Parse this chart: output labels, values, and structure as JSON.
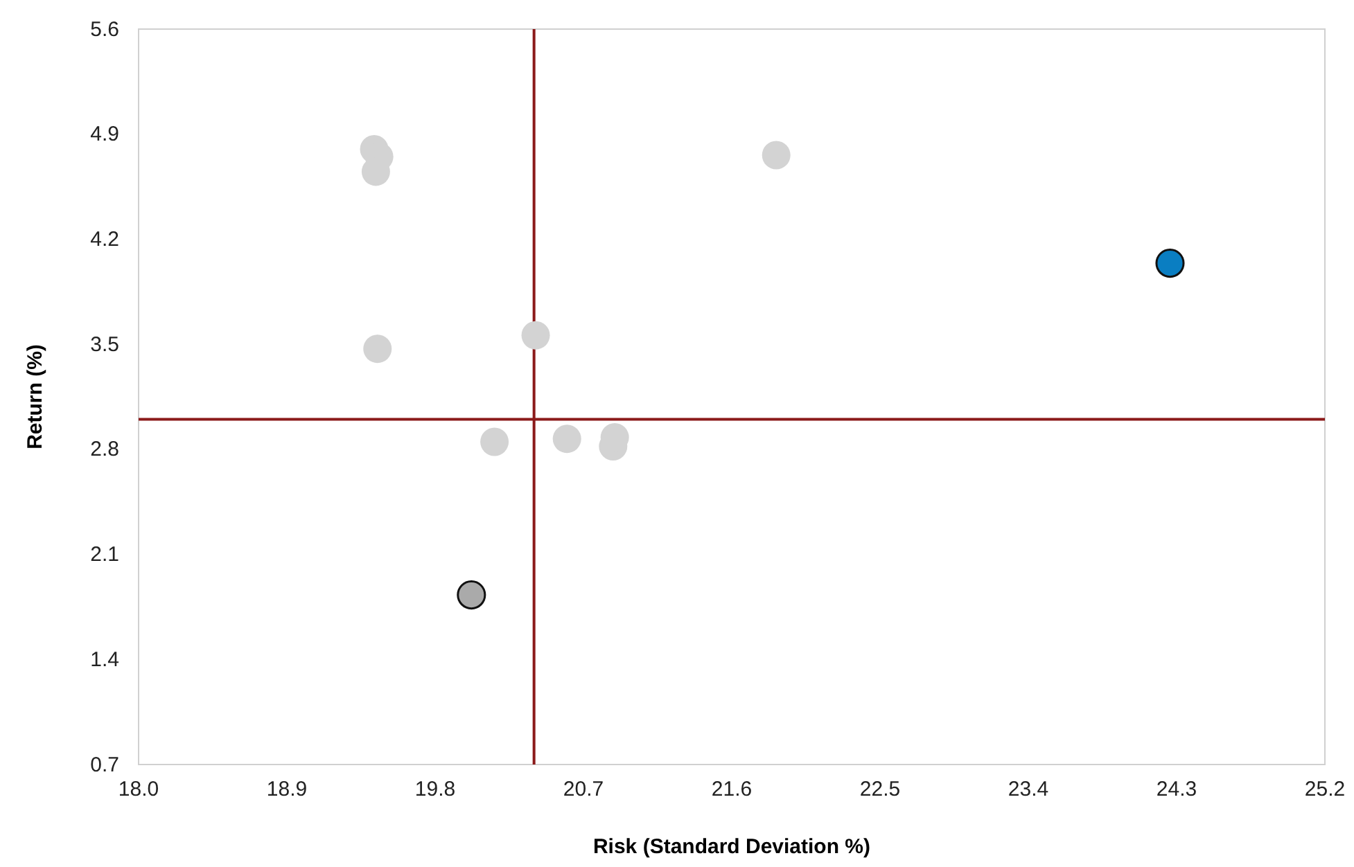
{
  "chart_data": {
    "type": "scatter",
    "xlabel": "Risk (Standard Deviation %)",
    "ylabel": "Return (%)",
    "xlim": [
      18.0,
      25.2
    ],
    "xticks": [
      {
        "value": 18.0,
        "label": "18.0"
      },
      18.9,
      19.8,
      20.7,
      21.6,
      22.5,
      23.4,
      24.3,
      25.2
    ],
    "ylim": [
      0.7,
      5.6
    ],
    "yticks": [
      0.7,
      1.4,
      2.1,
      2.8,
      3.5,
      4.2,
      4.9,
      5.6
    ],
    "grid": false,
    "marker": "circle",
    "ref_lines": [
      {
        "axis": "x",
        "value": 20.4,
        "color": "#8b1a1a"
      },
      {
        "axis": "y",
        "value": 3.0,
        "color": "#8b1a1a"
      }
    ],
    "series": [
      {
        "color": "#d3d3d3",
        "x": [
          19.43,
          19.46,
          19.44,
          19.45,
          20.41,
          20.16,
          20.6,
          20.88,
          20.89,
          21.87
        ],
        "values": [
          4.8,
          4.75,
          4.65,
          3.47,
          3.56,
          2.85,
          2.87,
          2.82,
          2.88,
          4.76
        ]
      },
      {
        "color": "#0a7ec2",
        "x": [
          24.26
        ],
        "values": [
          4.04
        ]
      },
      {
        "color": "#aaaaaa",
        "x": [
          20.02
        ],
        "values": [
          1.83
        ]
      }
    ]
  }
}
